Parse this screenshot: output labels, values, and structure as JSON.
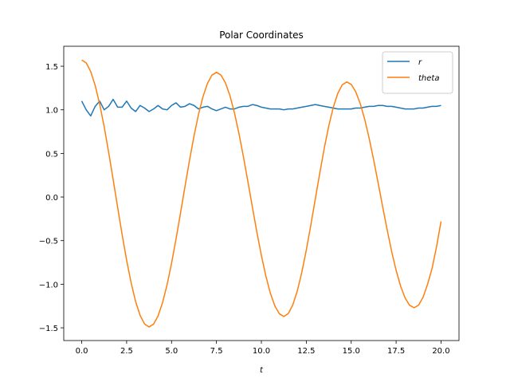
{
  "chart_data": {
    "type": "line",
    "title": "Polar Coordinates",
    "xlabel": "t",
    "x": [
      0,
      0.25,
      0.5,
      0.75,
      1,
      1.25,
      1.5,
      1.75,
      2,
      2.25,
      2.5,
      2.75,
      3,
      3.25,
      3.5,
      3.75,
      4,
      4.25,
      4.5,
      4.75,
      5,
      5.25,
      5.5,
      5.75,
      6,
      6.25,
      6.5,
      6.75,
      7,
      7.25,
      7.5,
      7.75,
      8,
      8.25,
      8.5,
      8.75,
      9,
      9.25,
      9.5,
      9.75,
      10,
      10.25,
      10.5,
      10.75,
      11,
      11.25,
      11.5,
      11.75,
      12,
      12.25,
      12.5,
      12.75,
      13,
      13.25,
      13.5,
      13.75,
      14,
      14.25,
      14.5,
      14.75,
      15,
      15.25,
      15.5,
      15.75,
      16,
      16.25,
      16.5,
      16.75,
      17,
      17.25,
      17.5,
      17.75,
      18,
      18.25,
      18.5,
      18.75,
      19,
      19.25,
      19.5,
      19.75,
      20
    ],
    "series": [
      {
        "name": "r",
        "color": "#1f77b4",
        "values": [
          1.1,
          1.0,
          0.93,
          1.04,
          1.1,
          1.0,
          1.04,
          1.12,
          1.03,
          1.03,
          1.1,
          1.02,
          0.98,
          1.05,
          1.02,
          0.98,
          1.01,
          1.05,
          1.01,
          1.0,
          1.05,
          1.08,
          1.03,
          1.04,
          1.07,
          1.05,
          1.01,
          1.03,
          1.04,
          1.01,
          0.99,
          1.01,
          1.03,
          1.01,
          1.01,
          1.03,
          1.04,
          1.04,
          1.06,
          1.05,
          1.03,
          1.02,
          1.01,
          1.01,
          1.01,
          1.0,
          1.01,
          1.01,
          1.02,
          1.03,
          1.04,
          1.05,
          1.06,
          1.05,
          1.04,
          1.03,
          1.02,
          1.01,
          1.01,
          1.01,
          1.01,
          1.02,
          1.02,
          1.03,
          1.04,
          1.04,
          1.05,
          1.05,
          1.04,
          1.04,
          1.03,
          1.02,
          1.01,
          1.01,
          1.01,
          1.02,
          1.02,
          1.03,
          1.04,
          1.04,
          1.05
        ]
      },
      {
        "name": "theta",
        "color": "#ff7f0e",
        "values": [
          1.571,
          1.538,
          1.439,
          1.279,
          1.065,
          0.806,
          0.513,
          0.2,
          -0.119,
          -0.432,
          -0.725,
          -0.984,
          -1.198,
          -1.358,
          -1.457,
          -1.49,
          -1.458,
          -1.364,
          -1.211,
          -1.007,
          -0.76,
          -0.481,
          -0.183,
          0.123,
          0.421,
          0.7,
          0.947,
          1.151,
          1.304,
          1.398,
          1.43,
          1.399,
          1.309,
          1.163,
          0.967,
          0.73,
          0.463,
          0.176,
          -0.116,
          -0.403,
          -0.67,
          -0.907,
          -1.103,
          -1.249,
          -1.339,
          -1.37,
          -1.336,
          -1.237,
          -1.077,
          -0.864,
          -0.609,
          -0.324,
          -0.025,
          0.274,
          0.559,
          0.814,
          1.027,
          1.187,
          1.286,
          1.32,
          1.292,
          1.208,
          1.073,
          0.892,
          0.673,
          0.425,
          0.16,
          -0.11,
          -0.375,
          -0.623,
          -0.841,
          -1.023,
          -1.158,
          -1.242,
          -1.27,
          -1.24,
          -1.15,
          -1.0,
          -0.82,
          -0.57,
          -0.28
        ]
      }
    ],
    "xlim": [
      -1,
      21
    ],
    "xticks": [
      {
        "value": 0,
        "label": "0.0"
      },
      2.5,
      {
        "value": 5,
        "label": "5.0"
      },
      7.5,
      {
        "value": 10,
        "label": "10.0"
      },
      12.5,
      {
        "value": 15,
        "label": "15.0"
      },
      17.5,
      {
        "value": 20,
        "label": "20.0"
      }
    ],
    "ylim": [
      -1.646,
      1.729
    ],
    "yticks": [
      {
        "value": -1.5,
        "label": "−1.5"
      },
      {
        "value": -1,
        "label": "−1.0"
      },
      {
        "value": -0.5,
        "label": "−0.5"
      },
      {
        "value": 0,
        "label": "0.0"
      },
      0.5,
      {
        "value": 1,
        "label": "1.0"
      },
      1.5
    ],
    "legend": "upper right",
    "grid": false
  }
}
